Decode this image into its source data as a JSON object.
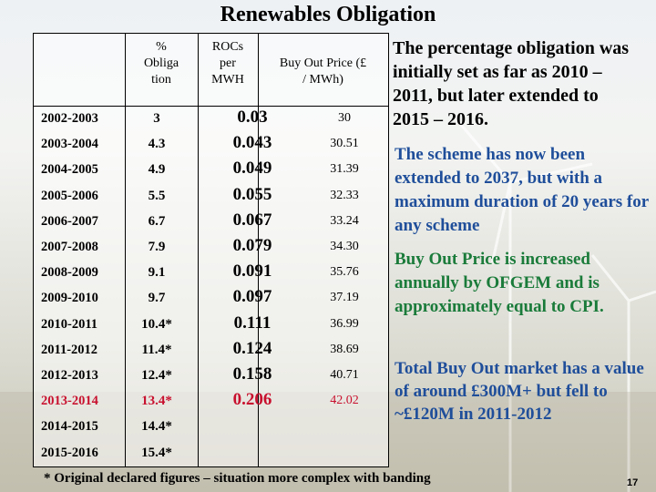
{
  "title": "Renewables Obligation",
  "table": {
    "headers": {
      "pct_line1": "%",
      "pct_line2": "Obliga",
      "pct_line3": "tion",
      "roc_line1": "ROCs",
      "roc_line2": "per",
      "roc_line3": "MWH",
      "buy_line1": "Buy Out Price (£",
      "buy_line2": "/ MWh)"
    },
    "rows": [
      {
        "year": "2002-2003",
        "pct": "3",
        "roc": "0.03",
        "buy": "30"
      },
      {
        "year": "2003-2004",
        "pct": "4.3",
        "roc": "0.043",
        "buy": "30.51"
      },
      {
        "year": "2004-2005",
        "pct": "4.9",
        "roc": "0.049",
        "buy": "31.39"
      },
      {
        "year": "2005-2006",
        "pct": "5.5",
        "roc": "0.055",
        "buy": "32.33"
      },
      {
        "year": "2006-2007",
        "pct": "6.7",
        "roc": "0.067",
        "buy": "33.24"
      },
      {
        "year": "2007-2008",
        "pct": "7.9",
        "roc": "0.079",
        "buy": "34.30"
      },
      {
        "year": "2008-2009",
        "pct": "9.1",
        "roc": "0.091",
        "buy": "35.76"
      },
      {
        "year": "2009-2010",
        "pct": "9.7",
        "roc": "0.097",
        "buy": "37.19"
      },
      {
        "year": "2010-2011",
        "pct": "10.4*",
        "roc": "0.111",
        "buy": "36.99"
      },
      {
        "year": "2011-2012",
        "pct": "11.4*",
        "roc": "0.124",
        "buy": "38.69"
      },
      {
        "year": "2012-2013",
        "pct": "12.4*",
        "roc": "0.158",
        "buy": "40.71"
      },
      {
        "year": "2013-2014",
        "pct": "13.4*",
        "roc": "0.206",
        "buy": "42.02",
        "highlight": true
      },
      {
        "year": "2014-2015",
        "pct": "14.4*",
        "roc": "",
        "buy": ""
      },
      {
        "year": "2015-2016",
        "pct": "15.4*",
        "roc": "",
        "buy": ""
      }
    ]
  },
  "notes": {
    "p1": "The percentage obligation was initially set as far as 2010 – 2011,  but later extended to 2015 – 2016.",
    "p2": "The scheme has now been extended to 2037, but with a maximum duration of  20 years for any scheme",
    "p3": "Buy Out Price  is increased annually by OFGEM and is approximately equal to CPI.",
    "p4": "Total Buy Out market has a value of around  £300M+ but fell to ~£120M in 2011-2012"
  },
  "footnote": "*  Original declared figures – situation more complex with banding",
  "page_number": "17",
  "colors": {
    "highlight_red": "#c8102e",
    "note_blue": "#1f4e9a",
    "note_green": "#1a7b3a"
  }
}
